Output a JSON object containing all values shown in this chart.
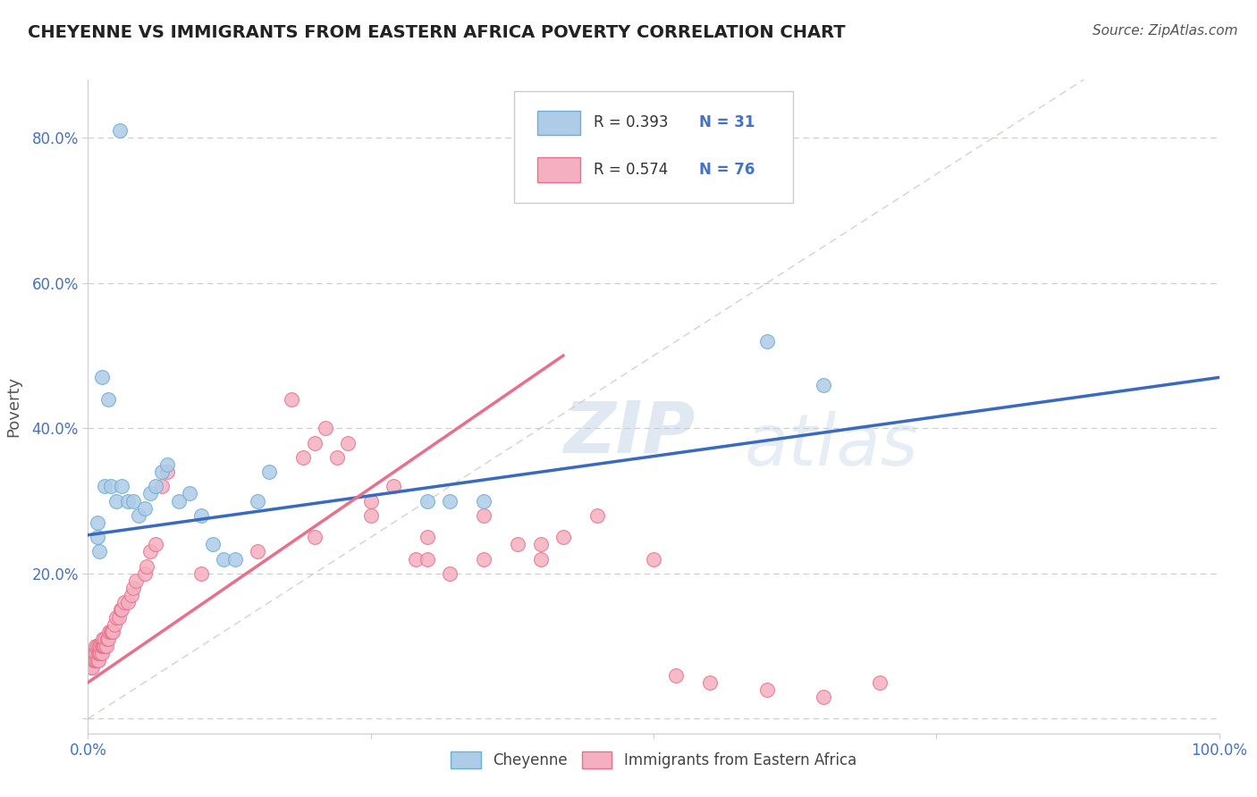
{
  "title": "CHEYENNE VS IMMIGRANTS FROM EASTERN AFRICA POVERTY CORRELATION CHART",
  "source": "Source: ZipAtlas.com",
  "ylabel": "Poverty",
  "watermark_top": "ZIP",
  "watermark_bot": "atlas",
  "cheyenne_R": 0.393,
  "cheyenne_N": 31,
  "immigrants_R": 0.574,
  "immigrants_N": 76,
  "xlim": [
    0.0,
    1.0
  ],
  "ylim": [
    -0.02,
    0.88
  ],
  "xticks": [
    0.0,
    0.25,
    0.5,
    0.75,
    1.0
  ],
  "xticklabels": [
    "0.0%",
    "",
    "",
    "",
    "100.0%"
  ],
  "ytick_positions": [
    0.0,
    0.2,
    0.4,
    0.6,
    0.8
  ],
  "yticklabels": [
    "",
    "20.0%",
    "40.0%",
    "60.0%",
    "80.0%"
  ],
  "cheyenne_color": "#aecce8",
  "cheyenne_edge": "#6aaed6",
  "immigrants_color": "#f4afc0",
  "immigrants_edge": "#e8708c",
  "trend_cheyenne_color": "#3a6abf",
  "trend_immigrants_color": "#e8708c",
  "diagonal_color": "#d8c0c0",
  "background_color": "#ffffff",
  "cheyenne_x": [
    0.028,
    0.018,
    0.012,
    0.008,
    0.008,
    0.01,
    0.015,
    0.02,
    0.025,
    0.03,
    0.035,
    0.04,
    0.045,
    0.05,
    0.055,
    0.06,
    0.065,
    0.07,
    0.08,
    0.09,
    0.1,
    0.11,
    0.12,
    0.13,
    0.15,
    0.16,
    0.3,
    0.32,
    0.35,
    0.6,
    0.65
  ],
  "cheyenne_y": [
    0.81,
    0.44,
    0.47,
    0.27,
    0.25,
    0.23,
    0.32,
    0.32,
    0.3,
    0.32,
    0.3,
    0.3,
    0.28,
    0.29,
    0.31,
    0.32,
    0.34,
    0.35,
    0.3,
    0.31,
    0.28,
    0.24,
    0.22,
    0.22,
    0.3,
    0.34,
    0.3,
    0.3,
    0.3,
    0.52,
    0.46
  ],
  "immigrants_x": [
    0.003,
    0.004,
    0.005,
    0.005,
    0.006,
    0.006,
    0.007,
    0.007,
    0.007,
    0.008,
    0.008,
    0.009,
    0.009,
    0.01,
    0.01,
    0.011,
    0.011,
    0.012,
    0.012,
    0.013,
    0.013,
    0.014,
    0.015,
    0.015,
    0.016,
    0.017,
    0.018,
    0.019,
    0.02,
    0.021,
    0.022,
    0.023,
    0.025,
    0.027,
    0.029,
    0.03,
    0.032,
    0.035,
    0.038,
    0.04,
    0.042,
    0.05,
    0.052,
    0.055,
    0.06,
    0.065,
    0.07,
    0.18,
    0.19,
    0.2,
    0.21,
    0.22,
    0.23,
    0.25,
    0.27,
    0.29,
    0.3,
    0.32,
    0.35,
    0.38,
    0.4,
    0.42,
    0.45,
    0.5,
    0.52,
    0.55,
    0.6,
    0.65,
    0.7,
    0.1,
    0.15,
    0.2,
    0.25,
    0.3,
    0.35,
    0.4
  ],
  "immigrants_y": [
    0.07,
    0.07,
    0.08,
    0.09,
    0.08,
    0.09,
    0.08,
    0.09,
    0.1,
    0.08,
    0.1,
    0.08,
    0.09,
    0.09,
    0.1,
    0.09,
    0.1,
    0.09,
    0.1,
    0.1,
    0.11,
    0.1,
    0.1,
    0.11,
    0.1,
    0.11,
    0.11,
    0.12,
    0.12,
    0.12,
    0.12,
    0.13,
    0.14,
    0.14,
    0.15,
    0.15,
    0.16,
    0.16,
    0.17,
    0.18,
    0.19,
    0.2,
    0.21,
    0.23,
    0.24,
    0.32,
    0.34,
    0.44,
    0.36,
    0.38,
    0.4,
    0.36,
    0.38,
    0.3,
    0.32,
    0.22,
    0.22,
    0.2,
    0.28,
    0.24,
    0.22,
    0.25,
    0.28,
    0.22,
    0.06,
    0.05,
    0.04,
    0.03,
    0.05,
    0.2,
    0.23,
    0.25,
    0.28,
    0.25,
    0.22,
    0.24
  ],
  "cheyenne_trend_x": [
    0.0,
    1.0
  ],
  "cheyenne_trend_y": [
    0.253,
    0.47
  ],
  "immigrants_trend_x": [
    0.0,
    0.42
  ],
  "immigrants_trend_y": [
    0.05,
    0.5
  ]
}
